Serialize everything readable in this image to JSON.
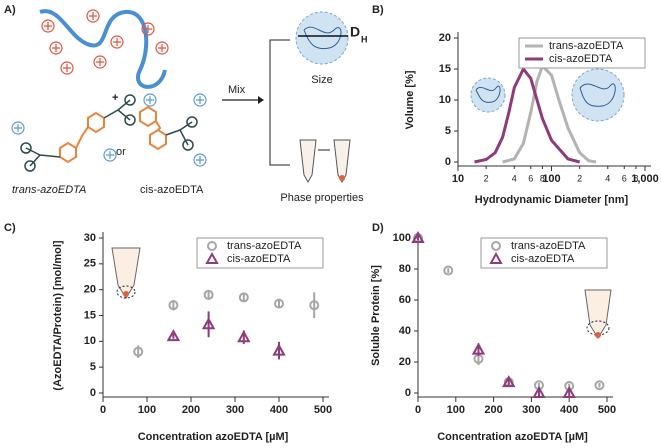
{
  "panel_labels": [
    "A)",
    "B)",
    "C)",
    "D)"
  ],
  "diagram": {
    "plus": "+",
    "or": "or",
    "trans_label": "trans-azoEDTA",
    "cis_label": "cis-azoEDTA",
    "mix": "Mix",
    "size": "Size",
    "dh": "D",
    "dh_sub": "H",
    "phase": "Phase properties"
  },
  "chart_data": [
    {
      "type": "line",
      "xlabel": "Hydrodynamic Diameter [nm]",
      "ylabel": "Volume [%]",
      "log_x": true,
      "grid": false,
      "legend": "upper right",
      "xlim": [
        10,
        1000
      ],
      "ylim": [
        0,
        20
      ],
      "xticks": [
        10,
        {
          "value": 20,
          "label": "2"
        },
        {
          "value": 40,
          "label": "4"
        },
        {
          "value": 60,
          "label": "6"
        },
        {
          "value": 80,
          "label": "8"
        },
        100,
        {
          "value": 200,
          "label": "2"
        },
        {
          "value": 400,
          "label": "4"
        },
        {
          "value": 600,
          "label": "6"
        },
        {
          "value": 800,
          "label": "8"
        },
        {
          "value": 1000,
          "label": "1,000"
        }
      ],
      "yticks": [
        0,
        5,
        10,
        15,
        20
      ],
      "series": [
        {
          "name": "trans-azoEDTA",
          "color": "#b3b3b3",
          "x": [
            30,
            40,
            50,
            60,
            70,
            80,
            100,
            120,
            150,
            200,
            250,
            300
          ],
          "values": [
            0,
            0.5,
            3,
            8,
            13,
            15.5,
            14,
            10,
            5.5,
            1.5,
            0.2,
            0
          ]
        },
        {
          "name": "cis-azoEDTA",
          "color": "#8e3b7c",
          "x": [
            15,
            20,
            25,
            30,
            35,
            40,
            50,
            60,
            70,
            80,
            100,
            150,
            200
          ],
          "values": [
            0,
            0.4,
            1.5,
            4,
            8,
            12,
            15,
            13.5,
            10,
            7,
            3.5,
            0.5,
            0
          ]
        }
      ]
    },
    {
      "type": "scatter",
      "xlabel": "Concentration azoEDTA [µM]",
      "ylabel": "(AzoEDTA/Protein) [mol/mol]",
      "grid": false,
      "legend": "upper right",
      "xlim": [
        0,
        500
      ],
      "ylim": [
        0,
        30
      ],
      "xticks": [
        0,
        100,
        200,
        300,
        400,
        500
      ],
      "yticks": [
        0,
        5,
        10,
        15,
        20,
        25,
        30
      ],
      "series": [
        {
          "name": "trans-azoEDTA",
          "color": "#a6a6a6",
          "marker": "circle",
          "x": [
            80,
            160,
            240,
            320,
            400,
            480
          ],
          "values": [
            8,
            17,
            19,
            18.5,
            17.3,
            17
          ],
          "errors": [
            1.2,
            1,
            0.7,
            0.8,
            0.8,
            2.5
          ]
        },
        {
          "name": "cis-azoEDTA",
          "color": "#8e3b7c",
          "marker": "triangle",
          "x": [
            160,
            240,
            320,
            400
          ],
          "values": [
            11,
            13.3,
            10.8,
            8.2
          ],
          "errors": [
            0.5,
            2.5,
            1.3,
            1.7
          ]
        }
      ]
    },
    {
      "type": "scatter",
      "xlabel": "Concentration azoEDTA [µM]",
      "ylabel": "Soluble Protein [%]",
      "grid": false,
      "legend": "upper right",
      "xlim": [
        0,
        500
      ],
      "ylim": [
        0,
        100
      ],
      "xticks": [
        0,
        100,
        200,
        300,
        400,
        500
      ],
      "yticks": [
        0,
        20,
        40,
        60,
        80,
        100
      ],
      "series": [
        {
          "name": "trans-azoEDTA",
          "color": "#a6a6a6",
          "marker": "circle",
          "x": [
            0,
            80,
            160,
            240,
            320,
            400,
            480
          ],
          "values": [
            100,
            79,
            22,
            7,
            5,
            4.5,
            5
          ],
          "errors": [
            1.5,
            1.5,
            4,
            2,
            1.5,
            1.5,
            1.5
          ]
        },
        {
          "name": "cis-azoEDTA",
          "color": "#8e3b7c",
          "marker": "triangle",
          "x": [
            0,
            160,
            240,
            320,
            400
          ],
          "values": [
            100,
            28,
            7,
            0,
            0
          ],
          "errors": [
            1.5,
            4,
            2,
            3,
            3
          ]
        }
      ]
    }
  ]
}
